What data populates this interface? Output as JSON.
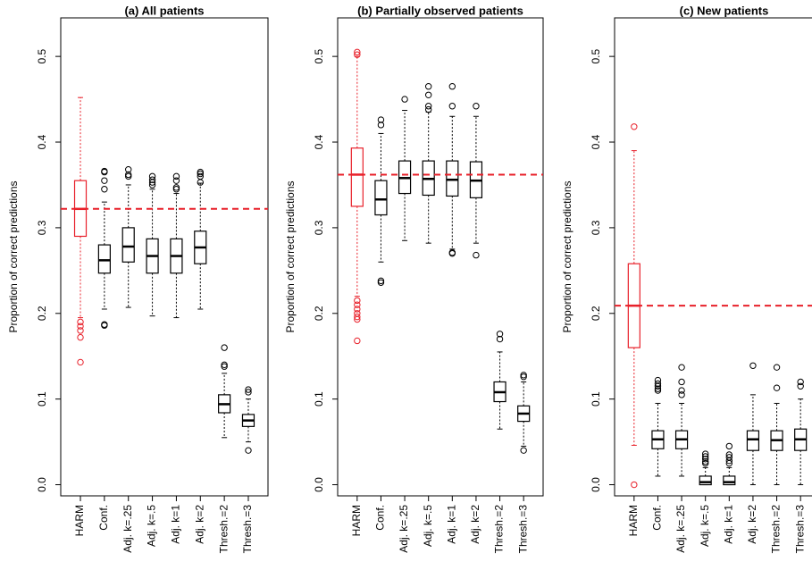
{
  "chart_data": [
    {
      "type": "box",
      "title": "(a) All patients",
      "y_label": "Proportion of correct predictions",
      "categories": [
        "HARM",
        "Conf.",
        "Adj. k=.25",
        "Adj. k=.5",
        "Adj. k=1",
        "Adj. k=2",
        "Thresh.=2",
        "Thresh.=3"
      ],
      "colors": [
        "#e8202a",
        "#000000",
        "#000000",
        "#000000",
        "#000000",
        "#000000",
        "#000000",
        "#000000"
      ],
      "whisker_low": [
        0.195,
        0.205,
        0.207,
        0.197,
        0.195,
        0.205,
        0.055,
        0.05
      ],
      "q1": [
        0.29,
        0.247,
        0.26,
        0.247,
        0.247,
        0.258,
        0.084,
        0.068
      ],
      "median": [
        0.322,
        0.262,
        0.278,
        0.267,
        0.267,
        0.277,
        0.094,
        0.075
      ],
      "q3": [
        0.355,
        0.28,
        0.3,
        0.287,
        0.287,
        0.296,
        0.105,
        0.082
      ],
      "whisker_high": [
        0.452,
        0.33,
        0.35,
        0.345,
        0.34,
        0.352,
        0.13,
        0.1
      ],
      "outliers": [
        [
          0.19,
          0.185,
          0.18,
          0.172,
          0.143
        ],
        [
          0.366,
          0.365,
          0.355,
          0.345,
          0.187,
          0.186
        ],
        [
          0.368,
          0.362,
          0.36
        ],
        [
          0.36,
          0.356,
          0.353,
          0.35
        ],
        [
          0.36,
          0.355,
          0.347,
          0.345
        ],
        [
          0.365,
          0.363,
          0.36,
          0.353
        ],
        [
          0.16,
          0.14,
          0.138
        ],
        [
          0.111,
          0.108,
          0.04
        ]
      ],
      "reference_line": {
        "value": 0.322,
        "color": "#e8202a"
      },
      "ylim": [
        -0.013,
        0.545
      ],
      "yticks": [
        {
          "value": 0,
          "label": "0.0"
        },
        0.1,
        0.2,
        0.3,
        0.4,
        0.5
      ]
    },
    {
      "type": "box",
      "title": "(b) Partially observed patients",
      "y_label": "Proportion of correct predictions",
      "categories": [
        "HARM",
        "Conf.",
        "Adj. k=.25",
        "Adj. k=.5",
        "Adj. k=1",
        "Adj. k=2",
        "Thresh.=2",
        "Thresh.=3"
      ],
      "colors": [
        "#e8202a",
        "#000000",
        "#000000",
        "#000000",
        "#000000",
        "#000000",
        "#000000",
        "#000000"
      ],
      "whisker_low": [
        0.22,
        0.26,
        0.285,
        0.282,
        0.275,
        0.282,
        0.065,
        0.045
      ],
      "q1": [
        0.325,
        0.315,
        0.34,
        0.338,
        0.337,
        0.335,
        0.097,
        0.074
      ],
      "median": [
        0.362,
        0.333,
        0.358,
        0.357,
        0.356,
        0.355,
        0.108,
        0.083
      ],
      "q3": [
        0.393,
        0.355,
        0.378,
        0.378,
        0.378,
        0.377,
        0.12,
        0.092
      ],
      "whisker_high": [
        0.5,
        0.41,
        0.437,
        0.435,
        0.43,
        0.43,
        0.155,
        0.12
      ],
      "outliers": [
        [
          0.505,
          0.502,
          0.215,
          0.21,
          0.205,
          0.2,
          0.196,
          0.193,
          0.168
        ],
        [
          0.426,
          0.42,
          0.238,
          0.236
        ],
        [
          0.45
        ],
        [
          0.465,
          0.455,
          0.442,
          0.438
        ],
        [
          0.465,
          0.442,
          0.271,
          0.27
        ],
        [
          0.442,
          0.268
        ],
        [
          0.176,
          0.17
        ],
        [
          0.128,
          0.126,
          0.04
        ]
      ],
      "reference_line": {
        "value": 0.362,
        "color": "#e8202a"
      },
      "ylim": [
        -0.013,
        0.545
      ],
      "yticks": [
        {
          "value": 0,
          "label": "0.0"
        },
        0.1,
        0.2,
        0.3,
        0.4,
        0.5
      ]
    },
    {
      "type": "box",
      "title": "(c) New patients",
      "y_label": "Proportion of correct predictions",
      "categories": [
        "HARM",
        "Conf.",
        "Adj. k=.25",
        "Adj. k=.5",
        "Adj. k=1",
        "Adj. k=2",
        "Thresh.=2",
        "Thresh.=3"
      ],
      "colors": [
        "#e8202a",
        "#000000",
        "#000000",
        "#000000",
        "#000000",
        "#000000",
        "#000000",
        "#000000"
      ],
      "whisker_low": [
        0.046,
        0.01,
        0.01,
        0,
        0,
        0,
        0,
        0
      ],
      "q1": [
        0.16,
        0.042,
        0.042,
        0,
        0,
        0.04,
        0.04,
        0.04
      ],
      "median": [
        0.209,
        0.053,
        0.053,
        0.003,
        0.003,
        0.053,
        0.052,
        0.053
      ],
      "q3": [
        0.258,
        0.063,
        0.063,
        0.01,
        0.01,
        0.063,
        0.063,
        0.065
      ],
      "whisker_high": [
        0.39,
        0.095,
        0.095,
        0.02,
        0.02,
        0.105,
        0.095,
        0.1
      ],
      "outliers": [
        [
          0.418,
          0
        ],
        [
          0.122,
          0.118,
          0.115,
          0.112,
          0.11
        ],
        [
          0.137,
          0.12,
          0.11,
          0.105
        ],
        [
          0.036,
          0.033,
          0.03,
          0.027,
          0.025
        ],
        [
          0.045,
          0.035,
          0.032,
          0.028,
          0.025
        ],
        [
          0.139
        ],
        [
          0.137,
          0.113
        ],
        [
          0.12,
          0.115
        ]
      ],
      "reference_line": {
        "value": 0.209,
        "color": "#e8202a"
      },
      "ylim": [
        -0.013,
        0.545
      ],
      "yticks": [
        {
          "value": 0,
          "label": "0.0"
        },
        0.1,
        0.2,
        0.3,
        0.4,
        0.5
      ]
    }
  ]
}
